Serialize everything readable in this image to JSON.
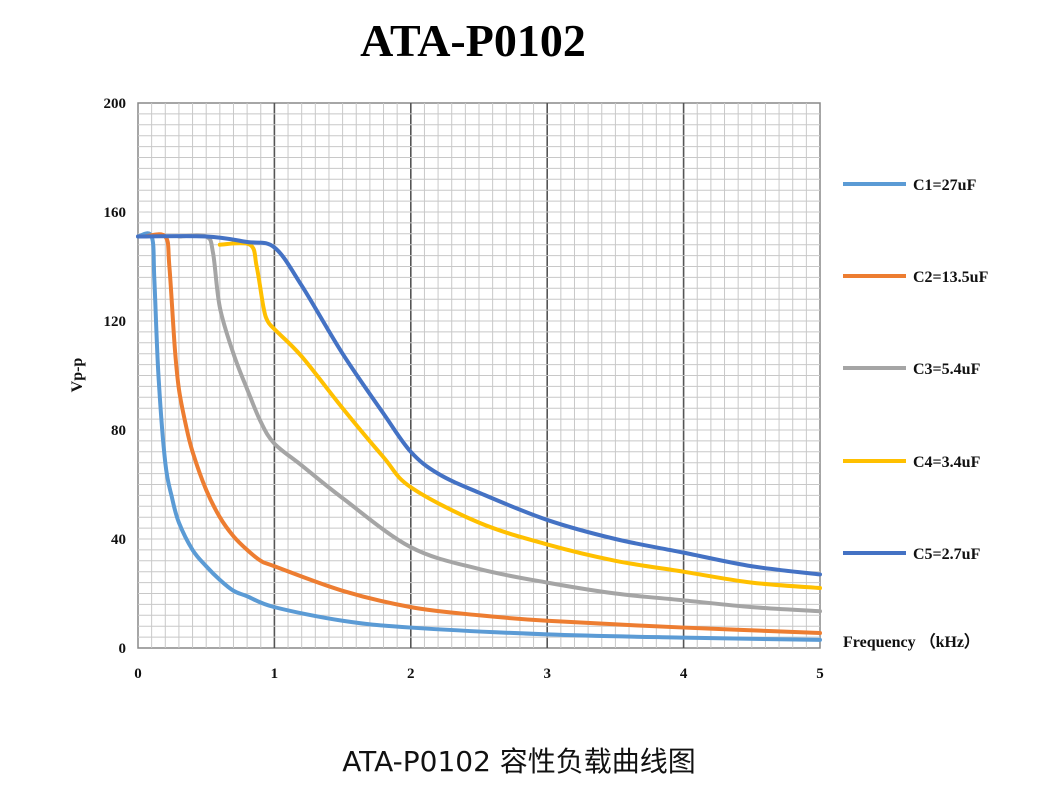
{
  "caption": "ATA-P0102 容性负载曲线图",
  "chart_data": {
    "type": "line",
    "title": "ATA-P0102",
    "xlabel": "Frequency （kHz）",
    "ylabel": "Vp-p",
    "xlim": [
      0,
      5
    ],
    "ylim": [
      0,
      200
    ],
    "x_ticks": [
      "0",
      "1",
      "2",
      "3",
      "4",
      "5"
    ],
    "y_ticks": [
      "0",
      "40",
      "80",
      "120",
      "160",
      "200"
    ],
    "grid": true,
    "legend_position": "right",
    "series": [
      {
        "name": "C1=27uF",
        "color": "#5b9bd5",
        "points": [
          [
            0,
            151
          ],
          [
            0.1,
            151
          ],
          [
            0.12,
            135
          ],
          [
            0.15,
            100
          ],
          [
            0.2,
            68
          ],
          [
            0.25,
            55
          ],
          [
            0.3,
            46
          ],
          [
            0.4,
            36
          ],
          [
            0.5,
            30
          ],
          [
            0.6,
            25
          ],
          [
            0.7,
            21
          ],
          [
            0.8,
            19
          ],
          [
            1.0,
            15
          ],
          [
            1.5,
            10
          ],
          [
            2.0,
            7.5
          ],
          [
            3.0,
            5
          ],
          [
            4.0,
            3.8
          ],
          [
            5.0,
            3
          ]
        ]
      },
      {
        "name": "C2=13.5uF",
        "color": "#ed7d31",
        "points": [
          [
            0.05,
            151
          ],
          [
            0.2,
            151
          ],
          [
            0.23,
            140
          ],
          [
            0.27,
            110
          ],
          [
            0.3,
            95
          ],
          [
            0.35,
            82
          ],
          [
            0.4,
            72
          ],
          [
            0.5,
            58
          ],
          [
            0.6,
            48
          ],
          [
            0.7,
            41
          ],
          [
            0.8,
            36
          ],
          [
            0.9,
            32
          ],
          [
            1.0,
            30
          ],
          [
            1.5,
            21
          ],
          [
            2.0,
            15
          ],
          [
            2.5,
            12
          ],
          [
            3.0,
            10
          ],
          [
            4.0,
            7.5
          ],
          [
            5.0,
            5.5
          ]
        ]
      },
      {
        "name": "C3=5.4uF",
        "color": "#a5a5a5",
        "points": [
          [
            0.3,
            151
          ],
          [
            0.5,
            151
          ],
          [
            0.55,
            145
          ],
          [
            0.6,
            125
          ],
          [
            0.7,
            108
          ],
          [
            0.8,
            95
          ],
          [
            0.9,
            83
          ],
          [
            1.0,
            75
          ],
          [
            1.2,
            67
          ],
          [
            1.5,
            55
          ],
          [
            2.0,
            37
          ],
          [
            2.5,
            29
          ],
          [
            3.0,
            24
          ],
          [
            3.5,
            20
          ],
          [
            4.0,
            17.5
          ],
          [
            4.5,
            15
          ],
          [
            5.0,
            13.5
          ]
        ]
      },
      {
        "name": "C4=3.4uF",
        "color": "#ffc000",
        "points": [
          [
            0.6,
            148
          ],
          [
            0.82,
            148
          ],
          [
            0.87,
            140
          ],
          [
            0.92,
            125
          ],
          [
            0.95,
            120
          ],
          [
            1.0,
            117
          ],
          [
            1.2,
            107
          ],
          [
            1.5,
            88
          ],
          [
            1.8,
            70
          ],
          [
            2.0,
            59
          ],
          [
            2.5,
            46
          ],
          [
            3.0,
            38
          ],
          [
            3.5,
            32
          ],
          [
            4.0,
            28
          ],
          [
            4.5,
            24
          ],
          [
            5.0,
            22
          ]
        ]
      },
      {
        "name": "C5=2.7uF",
        "color": "#4472c4",
        "points": [
          [
            0,
            151
          ],
          [
            0.5,
            151
          ],
          [
            0.8,
            149
          ],
          [
            1.0,
            147
          ],
          [
            1.2,
            133
          ],
          [
            1.5,
            108
          ],
          [
            1.8,
            86
          ],
          [
            2.0,
            72
          ],
          [
            2.2,
            64
          ],
          [
            2.5,
            57
          ],
          [
            3.0,
            47
          ],
          [
            3.5,
            40
          ],
          [
            4.0,
            35
          ],
          [
            4.5,
            30
          ],
          [
            5.0,
            27
          ]
        ]
      }
    ]
  }
}
